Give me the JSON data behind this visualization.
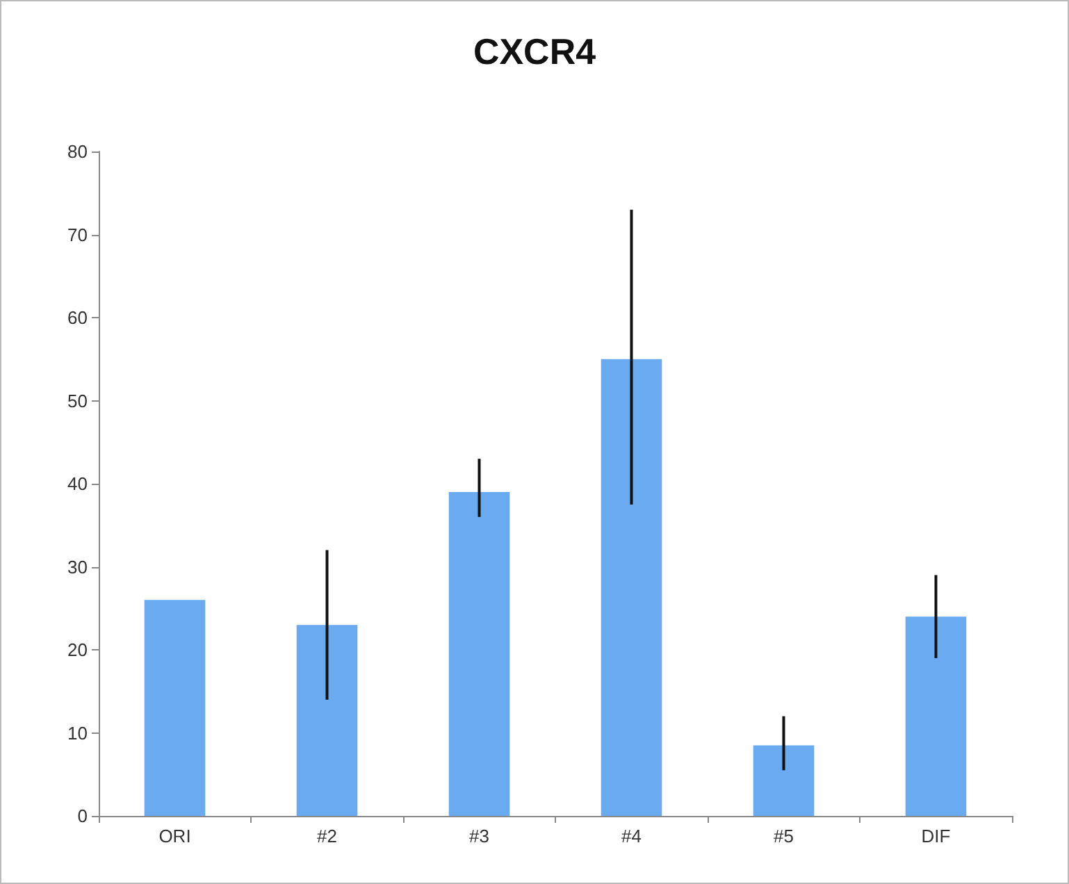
{
  "chart_data": {
    "type": "bar",
    "title": "CXCR4",
    "categories": [
      "ORI",
      "#2",
      "#3",
      "#4",
      "#5",
      "DIF"
    ],
    "values": [
      26,
      23,
      39,
      55,
      8.5,
      24
    ],
    "errors": [
      null,
      [
        14,
        32
      ],
      [
        36,
        43
      ],
      [
        37.5,
        73
      ],
      [
        5.5,
        12
      ],
      [
        19,
        29
      ]
    ],
    "color": "#6aaaf0",
    "ylim": [
      0,
      80
    ],
    "yticks": [
      0,
      10,
      20,
      30,
      40,
      50,
      60,
      70,
      80
    ],
    "grid": false
  }
}
